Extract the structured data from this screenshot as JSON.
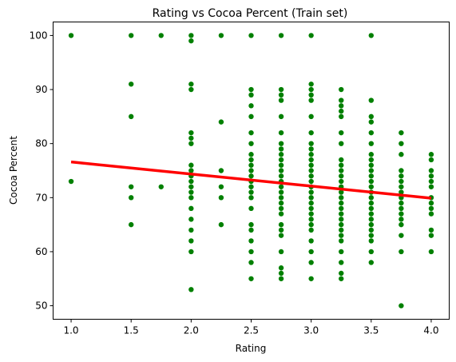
{
  "chart_data": {
    "type": "scatter",
    "title": "Rating vs Cocoa Percent (Train set)",
    "xlabel": "Rating",
    "ylabel": "Cocoa Percent",
    "xlim": [
      0.85,
      4.15
    ],
    "ylim": [
      47.5,
      102.5
    ],
    "xticks": [
      1.0,
      1.5,
      2.0,
      2.5,
      3.0,
      3.5,
      4.0
    ],
    "xtick_labels": [
      "1.0",
      "1.5",
      "2.0",
      "2.5",
      "3.0",
      "3.5",
      "4.0"
    ],
    "yticks": [
      50,
      60,
      70,
      80,
      90,
      100
    ],
    "ytick_labels": [
      "50",
      "60",
      "70",
      "80",
      "90",
      "100"
    ],
    "grid": false,
    "colors": {
      "points": "#008000",
      "fit_line": "#ff0000"
    },
    "series": [
      {
        "type": "scatter",
        "points": [
          [
            1.0,
            100
          ],
          [
            1.0,
            73
          ],
          [
            1.5,
            100
          ],
          [
            1.5,
            91
          ],
          [
            1.5,
            85
          ],
          [
            1.5,
            72
          ],
          [
            1.5,
            70
          ],
          [
            1.5,
            65
          ],
          [
            1.75,
            100
          ],
          [
            1.75,
            72
          ],
          [
            2.0,
            100
          ],
          [
            2.0,
            99
          ],
          [
            2.0,
            91
          ],
          [
            2.0,
            90
          ],
          [
            2.0,
            82
          ],
          [
            2.0,
            81
          ],
          [
            2.0,
            80
          ],
          [
            2.0,
            76
          ],
          [
            2.0,
            75
          ],
          [
            2.0,
            74
          ],
          [
            2.0,
            73
          ],
          [
            2.0,
            72
          ],
          [
            2.0,
            71
          ],
          [
            2.0,
            70
          ],
          [
            2.0,
            68
          ],
          [
            2.0,
            66
          ],
          [
            2.0,
            64
          ],
          [
            2.0,
            62
          ],
          [
            2.0,
            60
          ],
          [
            2.0,
            53
          ],
          [
            2.25,
            100
          ],
          [
            2.25,
            84
          ],
          [
            2.25,
            75
          ],
          [
            2.25,
            72
          ],
          [
            2.25,
            70
          ],
          [
            2.25,
            65
          ],
          [
            2.5,
            100
          ],
          [
            2.5,
            90
          ],
          [
            2.5,
            89
          ],
          [
            2.5,
            87
          ],
          [
            2.5,
            85
          ],
          [
            2.5,
            82
          ],
          [
            2.5,
            80
          ],
          [
            2.5,
            78
          ],
          [
            2.5,
            77
          ],
          [
            2.5,
            76
          ],
          [
            2.5,
            75
          ],
          [
            2.5,
            74
          ],
          [
            2.5,
            73
          ],
          [
            2.5,
            72
          ],
          [
            2.5,
            71
          ],
          [
            2.5,
            70
          ],
          [
            2.5,
            68
          ],
          [
            2.5,
            65
          ],
          [
            2.5,
            64
          ],
          [
            2.5,
            62
          ],
          [
            2.5,
            60
          ],
          [
            2.5,
            58
          ],
          [
            2.5,
            55
          ],
          [
            2.75,
            100
          ],
          [
            2.75,
            90
          ],
          [
            2.75,
            89
          ],
          [
            2.75,
            88
          ],
          [
            2.75,
            85
          ],
          [
            2.75,
            82
          ],
          [
            2.75,
            80
          ],
          [
            2.75,
            79
          ],
          [
            2.75,
            78
          ],
          [
            2.75,
            77
          ],
          [
            2.75,
            76
          ],
          [
            2.75,
            75
          ],
          [
            2.75,
            74
          ],
          [
            2.75,
            73
          ],
          [
            2.75,
            72
          ],
          [
            2.75,
            71
          ],
          [
            2.75,
            70
          ],
          [
            2.75,
            69
          ],
          [
            2.75,
            68
          ],
          [
            2.75,
            67
          ],
          [
            2.75,
            65
          ],
          [
            2.75,
            64
          ],
          [
            2.75,
            63
          ],
          [
            2.75,
            60
          ],
          [
            2.75,
            57
          ],
          [
            2.75,
            56
          ],
          [
            2.75,
            55
          ],
          [
            3.0,
            100
          ],
          [
            3.0,
            91
          ],
          [
            3.0,
            90
          ],
          [
            3.0,
            89
          ],
          [
            3.0,
            88
          ],
          [
            3.0,
            85
          ],
          [
            3.0,
            82
          ],
          [
            3.0,
            80
          ],
          [
            3.0,
            79
          ],
          [
            3.0,
            78
          ],
          [
            3.0,
            77
          ],
          [
            3.0,
            76
          ],
          [
            3.0,
            75
          ],
          [
            3.0,
            74
          ],
          [
            3.0,
            73
          ],
          [
            3.0,
            72
          ],
          [
            3.0,
            71
          ],
          [
            3.0,
            70
          ],
          [
            3.0,
            69
          ],
          [
            3.0,
            68
          ],
          [
            3.0,
            67
          ],
          [
            3.0,
            66
          ],
          [
            3.0,
            65
          ],
          [
            3.0,
            64
          ],
          [
            3.0,
            62
          ],
          [
            3.0,
            60
          ],
          [
            3.0,
            58
          ],
          [
            3.0,
            55
          ],
          [
            3.25,
            90
          ],
          [
            3.25,
            88
          ],
          [
            3.25,
            87
          ],
          [
            3.25,
            86
          ],
          [
            3.25,
            85
          ],
          [
            3.25,
            82
          ],
          [
            3.25,
            80
          ],
          [
            3.25,
            77
          ],
          [
            3.25,
            76
          ],
          [
            3.25,
            75
          ],
          [
            3.25,
            74
          ],
          [
            3.25,
            73
          ],
          [
            3.25,
            72
          ],
          [
            3.25,
            71
          ],
          [
            3.25,
            70
          ],
          [
            3.25,
            69
          ],
          [
            3.25,
            68
          ],
          [
            3.25,
            67
          ],
          [
            3.25,
            66
          ],
          [
            3.25,
            65
          ],
          [
            3.25,
            64
          ],
          [
            3.25,
            63
          ],
          [
            3.25,
            62
          ],
          [
            3.25,
            60
          ],
          [
            3.25,
            58
          ],
          [
            3.25,
            56
          ],
          [
            3.25,
            55
          ],
          [
            3.5,
            100
          ],
          [
            3.5,
            88
          ],
          [
            3.5,
            85
          ],
          [
            3.5,
            84
          ],
          [
            3.5,
            82
          ],
          [
            3.5,
            80
          ],
          [
            3.5,
            78
          ],
          [
            3.5,
            77
          ],
          [
            3.5,
            76
          ],
          [
            3.5,
            75
          ],
          [
            3.5,
            74
          ],
          [
            3.5,
            73
          ],
          [
            3.5,
            72
          ],
          [
            3.5,
            71
          ],
          [
            3.5,
            70
          ],
          [
            3.5,
            69
          ],
          [
            3.5,
            68
          ],
          [
            3.5,
            67
          ],
          [
            3.5,
            66
          ],
          [
            3.5,
            65
          ],
          [
            3.5,
            64
          ],
          [
            3.5,
            63
          ],
          [
            3.5,
            62
          ],
          [
            3.5,
            60
          ],
          [
            3.5,
            58
          ],
          [
            3.75,
            82
          ],
          [
            3.75,
            80
          ],
          [
            3.75,
            78
          ],
          [
            3.75,
            75
          ],
          [
            3.75,
            74
          ],
          [
            3.75,
            73
          ],
          [
            3.75,
            72
          ],
          [
            3.75,
            71
          ],
          [
            3.75,
            70
          ],
          [
            3.75,
            69
          ],
          [
            3.75,
            68
          ],
          [
            3.75,
            67
          ],
          [
            3.75,
            66
          ],
          [
            3.75,
            65
          ],
          [
            3.75,
            63
          ],
          [
            3.75,
            60
          ],
          [
            3.75,
            50
          ],
          [
            4.0,
            78
          ],
          [
            4.0,
            77
          ],
          [
            4.0,
            75
          ],
          [
            4.0,
            74
          ],
          [
            4.0,
            73
          ],
          [
            4.0,
            72
          ],
          [
            4.0,
            70
          ],
          [
            4.0,
            69
          ],
          [
            4.0,
            68
          ],
          [
            4.0,
            67
          ],
          [
            4.0,
            64
          ],
          [
            4.0,
            63
          ],
          [
            4.0,
            60
          ]
        ]
      },
      {
        "type": "line",
        "points": [
          [
            1.0,
            76.6
          ],
          [
            4.0,
            69.9
          ]
        ]
      }
    ]
  }
}
